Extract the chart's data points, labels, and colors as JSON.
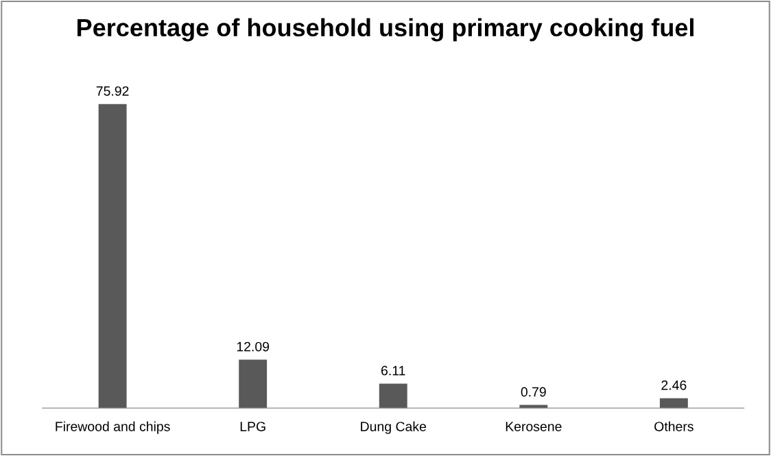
{
  "chart_data": {
    "type": "bar",
    "title": "Percentage of household using primary cooking fuel",
    "categories": [
      "Firewood and chips",
      "LPG",
      "Dung Cake",
      "Kerosene",
      "Others"
    ],
    "values": [
      75.92,
      12.09,
      6.11,
      0.79,
      2.46
    ],
    "color": "#595959",
    "data_labels": true,
    "tick_labels": "x"
  }
}
